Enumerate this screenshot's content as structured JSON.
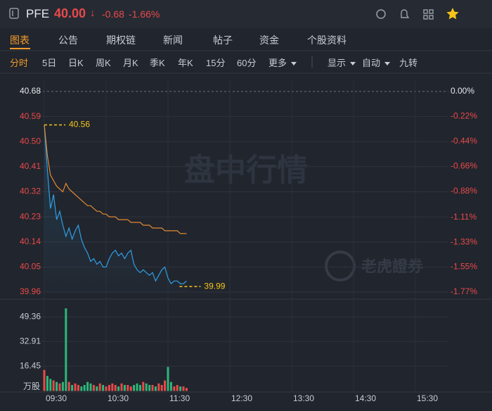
{
  "header": {
    "ticker": "PFE",
    "price": "40.00",
    "arrow": "↓",
    "change": "-0.68",
    "change_pct": "-1.66%"
  },
  "tabs": [
    "图表",
    "公告",
    "期权链",
    "新闻",
    "帖子",
    "资金",
    "个股资料"
  ],
  "periods": [
    "分时",
    "5日",
    "日K",
    "周K",
    "月K",
    "季K",
    "年K",
    "15分",
    "60分",
    "更多"
  ],
  "options": [
    "显示",
    "自动",
    "九转"
  ],
  "chart_data": {
    "type": "line",
    "watermark": "盘中行情",
    "brand": "老虎證券",
    "volume_unit": "万股",
    "x": [
      "09:30",
      "09:33",
      "09:36",
      "09:39",
      "09:42",
      "09:45",
      "09:48",
      "09:51",
      "09:54",
      "09:57",
      "10:00",
      "10:03",
      "10:06",
      "10:09",
      "10:12",
      "10:15",
      "10:18",
      "10:21",
      "10:24",
      "10:27",
      "10:30",
      "10:33",
      "10:36",
      "10:39",
      "10:42",
      "10:45",
      "10:48",
      "10:51",
      "10:54",
      "10:57",
      "11:00",
      "11:03",
      "11:06",
      "11:09",
      "11:12",
      "11:15",
      "11:18",
      "11:21",
      "11:24",
      "11:27",
      "11:30",
      "11:33",
      "11:36",
      "11:39",
      "11:42",
      "11:45",
      "11:48"
    ],
    "xlim": [
      "09:30",
      "16:00"
    ],
    "xticks": [
      "09:30",
      "10:30",
      "11:30",
      "12:30",
      "13:30",
      "14:30",
      "15:30"
    ],
    "series": [
      {
        "name": "price",
        "color": "#2f9fe6",
        "values": [
          40.56,
          40.4,
          40.26,
          40.31,
          40.22,
          40.25,
          40.2,
          40.16,
          40.19,
          40.15,
          40.18,
          40.2,
          40.15,
          40.12,
          40.1,
          40.07,
          40.08,
          40.06,
          40.07,
          40.05,
          40.05,
          40.08,
          40.1,
          40.11,
          40.09,
          40.1,
          40.08,
          40.1,
          40.11,
          40.06,
          40.04,
          40.03,
          40.04,
          40.03,
          40.02,
          40.03,
          40.0,
          40.02,
          40.04,
          40.05,
          40.01,
          39.99,
          40.0,
          40.0,
          39.99,
          39.99,
          40.0
        ]
      },
      {
        "name": "average",
        "color": "#e08a34",
        "values": [
          40.56,
          40.45,
          40.38,
          40.36,
          40.34,
          40.33,
          40.32,
          40.35,
          40.33,
          40.32,
          40.31,
          40.3,
          40.29,
          40.28,
          40.27,
          40.27,
          40.26,
          40.25,
          40.25,
          40.24,
          40.24,
          40.23,
          40.23,
          40.23,
          40.22,
          40.22,
          40.22,
          40.22,
          40.21,
          40.21,
          40.21,
          40.21,
          40.2,
          40.2,
          40.2,
          40.19,
          40.19,
          40.19,
          40.19,
          40.18,
          40.18,
          40.18,
          40.18,
          40.18,
          40.17,
          40.17,
          40.17
        ]
      }
    ],
    "ylim": [
      39.96,
      40.68
    ],
    "yticks": [
      40.68,
      40.59,
      {
        "value": 40.5,
        "label": "40.50"
      },
      40.41,
      40.32,
      40.23,
      40.14,
      40.05,
      39.96
    ],
    "y2lim": [
      -1.77,
      0
    ],
    "y2ticks": [
      {
        "value": 0,
        "label": "0.00%"
      },
      {
        "value": -0.22,
        "label": "-0.22%"
      },
      {
        "value": -0.44,
        "label": "-0.44%"
      },
      {
        "value": -0.66,
        "label": "-0.66%"
      },
      {
        "value": -0.88,
        "label": "-0.88%"
      },
      {
        "value": -1.11,
        "label": "-1.11%"
      },
      {
        "value": -1.33,
        "label": "-1.33%"
      },
      {
        "value": -1.55,
        "label": "-1.55%"
      },
      {
        "value": -1.77,
        "label": "-1.77%"
      }
    ],
    "high": 40.56,
    "low": 39.99,
    "volume": {
      "values": [
        14,
        10,
        8,
        7,
        6,
        5,
        6,
        55,
        6,
        4,
        5,
        4,
        3,
        4,
        6,
        5,
        4,
        3,
        5,
        4,
        3,
        4,
        5,
        4,
        3,
        5,
        4,
        4,
        3,
        4,
        5,
        4,
        6,
        5,
        4,
        4,
        3,
        5,
        4,
        7,
        16,
        6,
        3,
        4,
        3,
        3,
        2
      ],
      "ylim": [
        0,
        56
      ],
      "yticks": [
        49.36,
        32.91,
        16.45
      ],
      "up_color": "#e84a4a",
      "down_color": "#2db77a"
    }
  }
}
